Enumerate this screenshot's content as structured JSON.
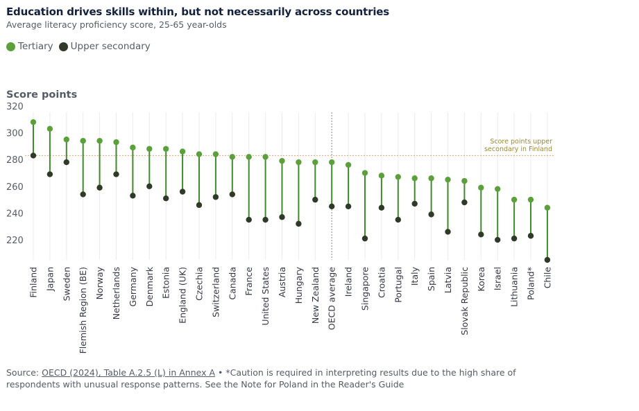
{
  "title": "Education drives skills within, but not necessarily across countries",
  "subtitle": "Average literacy proficiency score, 25-65 year-olds",
  "ytitle": "Score points",
  "source": {
    "prefix": "Source: ",
    "link_text": "OECD (2024), Table A.2.5 (L) in Annex A",
    "suffix": " • *Caution is required in interpreting results due to the high share of respondents with unusual response patterns. See the Note for Poland in the Reader's Guide"
  },
  "colors": {
    "tertiary": "#5ba03a",
    "upper_secondary": "#2f3a28",
    "stem": "#3f8a2a",
    "reference": "#e8a070",
    "annotation": "#9a8a30",
    "oecd_line": "#888888"
  },
  "chart_data": {
    "type": "dumbbell",
    "categories": [
      "Finland",
      "Japan",
      "Sweden",
      "Flemish Region (BE)",
      "Norway",
      "Netherlands",
      "Germany",
      "Denmark",
      "Estonia",
      "England (UK)",
      "Czechia",
      "Switzerland",
      "Canada",
      "France",
      "United States",
      "Austria",
      "Hungary",
      "New Zealand",
      "OECD average",
      "Ireland",
      "Singapore",
      "Croatia",
      "Portugal",
      "Italy",
      "Spain",
      "Latvia",
      "Slovak Republic",
      "Korea",
      "Israel",
      "Lithuania",
      "Poland*",
      "Chile"
    ],
    "series": [
      {
        "name": "Tertiary",
        "values": [
          308,
          303,
          295,
          294,
          294,
          293,
          289,
          288,
          288,
          286,
          284,
          284,
          282,
          282,
          282,
          279,
          278,
          278,
          278,
          276,
          270,
          268,
          267,
          266,
          266,
          265,
          264,
          259,
          258,
          250,
          250,
          244
        ]
      },
      {
        "name": "Upper secondary",
        "values": [
          283,
          269,
          278,
          254,
          259,
          269,
          253,
          260,
          251,
          256,
          246,
          252,
          254,
          235,
          235,
          237,
          232,
          250,
          245,
          245,
          221,
          244,
          235,
          247,
          239,
          226,
          248,
          224,
          220,
          221,
          223,
          205
        ]
      }
    ],
    "ylabel": "Score points",
    "yticks": [
      220,
      240,
      260,
      280,
      300,
      320
    ],
    "ylim": [
      205,
      320
    ],
    "reference_line": {
      "value": 283,
      "label_line1": "Score points upper",
      "label_line2": "secondary in Finland"
    },
    "highlight_category": "OECD average",
    "grid": true
  }
}
